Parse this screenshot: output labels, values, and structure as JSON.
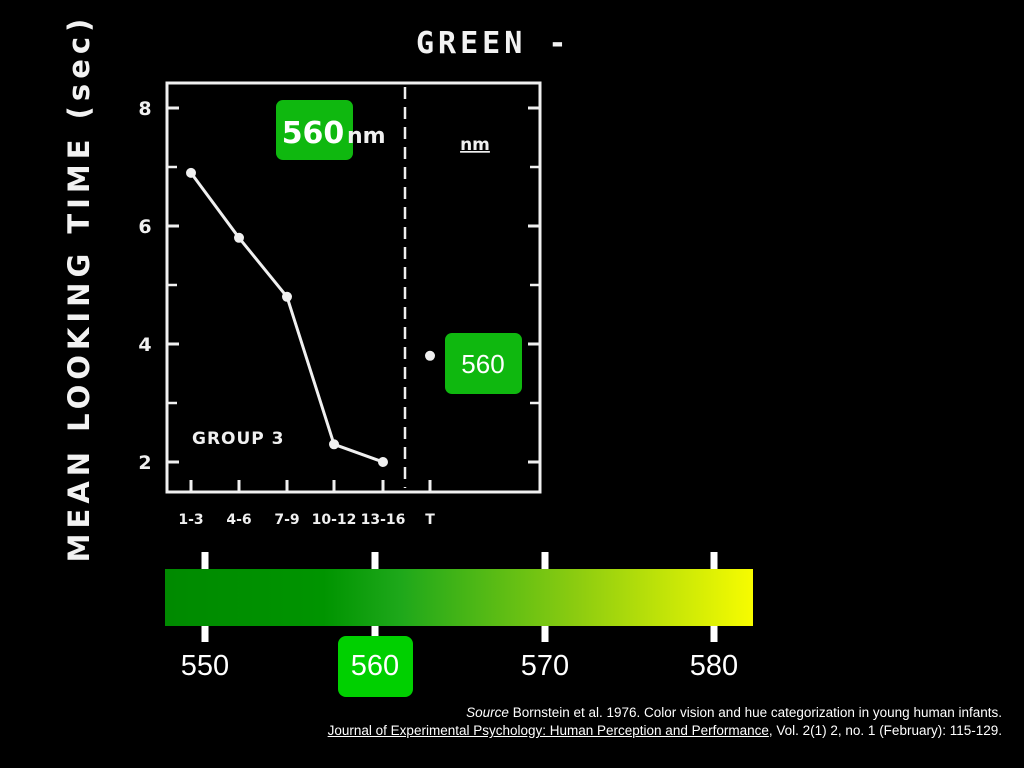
{
  "slide": {
    "title": "GREEN -",
    "ylabel": "MEAN LOOKING TIME   (sec)",
    "chart_data": {
      "type": "line",
      "title": "GREEN -",
      "ylabel": "MEAN LOOKING TIME (sec)",
      "xlabel": "",
      "categories": [
        "1-3",
        "4-6",
        "7-9",
        "10-12",
        "13-16"
      ],
      "series": [
        {
          "values": [
            6.9,
            5.8,
            4.8,
            2.3,
            2.0
          ]
        }
      ],
      "test_point": {
        "category": "T",
        "value": 3.8
      },
      "ylim": [
        1.5,
        8.3
      ],
      "yticks": [
        2,
        4,
        6,
        8
      ],
      "group_label": "GROUP 3",
      "habituation_stimulus_label": "560",
      "habituation_stimulus_unit": "nm",
      "test_panel_unit": "nm",
      "test_stimulus_label": "560",
      "highlight_color": "#0fb80f"
    },
    "wavelength_scale": {
      "ticks": [
        550,
        560,
        570,
        580
      ],
      "highlighted": 560,
      "highlight_color": "#00d000",
      "gradient_colors": [
        "#008a00",
        "#009400",
        "#1ea81a",
        "#8ccc10",
        "#f7fc00"
      ]
    },
    "source": {
      "prefix": "Source",
      "citation": " Bornstein et al. 1976. Color vision and hue categorization in young human infants.",
      "journal": "Journal of Experimental Psychology: Human Perception and Performance",
      "rest": ", Vol. 2(1) 2, no. 1 (February): 115-129."
    }
  }
}
